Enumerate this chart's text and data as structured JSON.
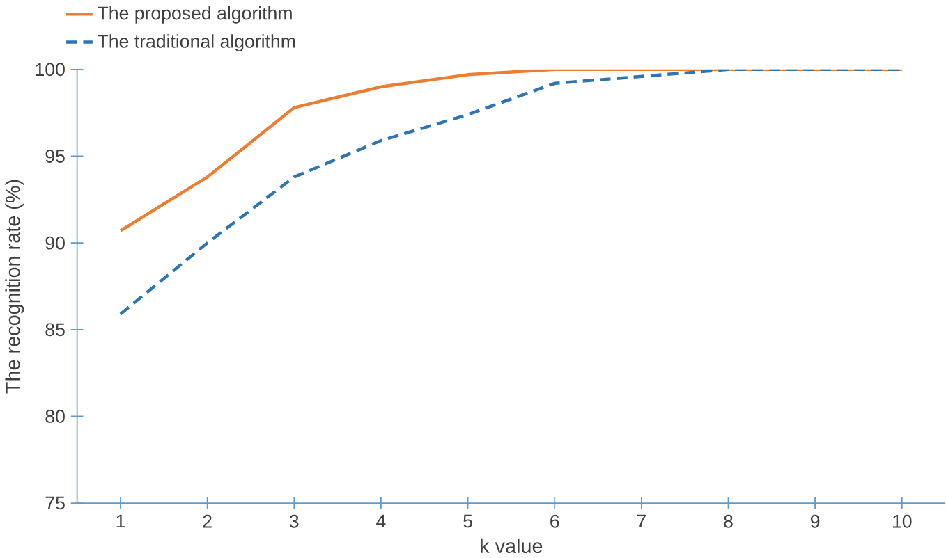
{
  "chart_data": {
    "type": "line",
    "xlabel": "k value",
    "ylabel": "The recognition rate (%)",
    "x": [
      1,
      2,
      3,
      4,
      5,
      6,
      7,
      8,
      9,
      10
    ],
    "series": [
      {
        "name": "The proposed algorithm",
        "color": "#ed7d31",
        "line_style": "solid",
        "values": [
          90.7,
          93.8,
          97.8,
          99.0,
          99.7,
          100,
          100,
          100,
          100,
          100
        ]
      },
      {
        "name": "The traditional algorithm",
        "color": "#2e75b6",
        "line_style": "dashed",
        "values": [
          85.9,
          90.0,
          93.8,
          95.9,
          97.4,
          99.2,
          99.6,
          100,
          100,
          100
        ]
      }
    ],
    "xlim": [
      0.5,
      10.5
    ],
    "xticks": [
      1,
      2,
      3,
      4,
      5,
      6,
      7,
      8,
      9,
      10
    ],
    "ylim": [
      75,
      100
    ],
    "yticks": [
      75,
      80,
      85,
      90,
      95,
      100
    ],
    "grid": false,
    "legend": "top left",
    "marker": "none"
  }
}
